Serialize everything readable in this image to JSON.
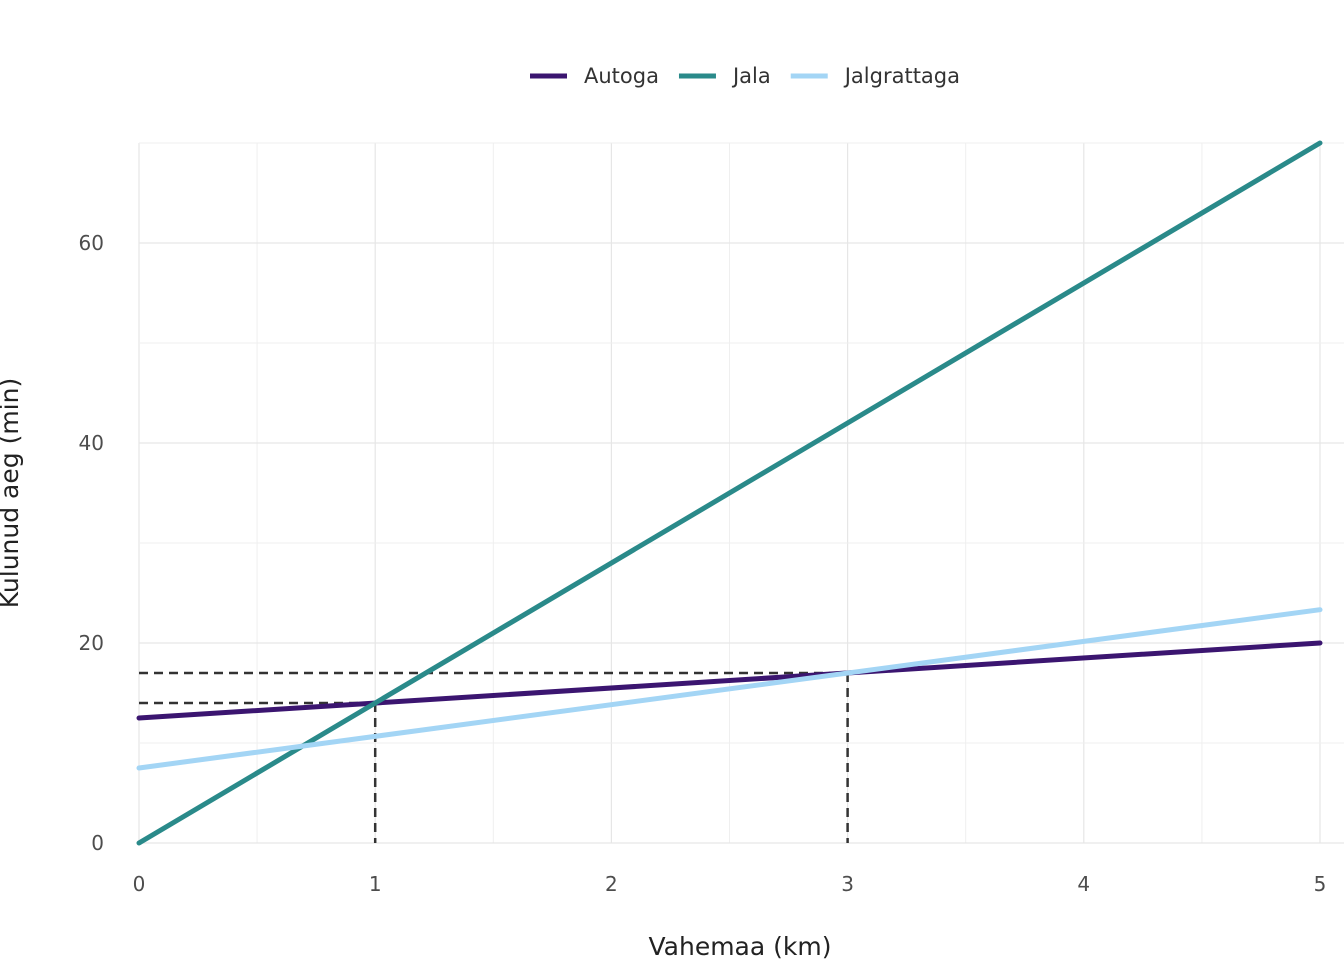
{
  "chart_data": {
    "type": "line",
    "title": "",
    "xlabel": "Vahemaa (km)",
    "ylabel": "Kulunud aeg (min)",
    "xlim": [
      0,
      5
    ],
    "ylim": [
      0,
      70
    ],
    "xticks": [
      0,
      1,
      2,
      3,
      4,
      5
    ],
    "yticks": [
      0,
      20,
      40,
      60
    ],
    "grid": true,
    "legend_position": "top-center",
    "series": [
      {
        "name": "Autoga",
        "color": "#3b1570",
        "x": [
          0,
          5
        ],
        "y": [
          12.5,
          20
        ]
      },
      {
        "name": "Jala",
        "color": "#2a8a8a",
        "x": [
          0,
          5
        ],
        "y": [
          0,
          70
        ]
      },
      {
        "name": "Jalgrattaga",
        "color": "#a3d5f5",
        "x": [
          0,
          5
        ],
        "y": [
          7.5,
          23.33
        ]
      }
    ],
    "reference_lines": [
      {
        "x": 1,
        "y": 14,
        "color": "#333333",
        "style": "dashed"
      },
      {
        "x": 3,
        "y": 17,
        "color": "#333333",
        "style": "dashed"
      }
    ]
  }
}
